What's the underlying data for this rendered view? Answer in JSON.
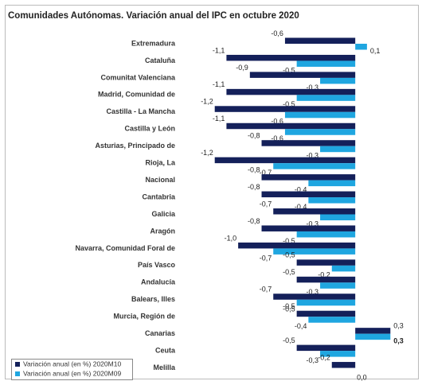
{
  "chart_data": {
    "type": "bar",
    "orientation": "horizontal",
    "title": "Comunidades Autónomas. Variación anual del IPC en octubre 2020",
    "categories": [
      "Extremadura",
      "Cataluña",
      "Comunitat Valenciana",
      "Madrid, Comunidad de",
      "Castilla - La Mancha",
      "Castilla y León",
      "Asturias, Principado de",
      "Rioja, La",
      "Nacional",
      "Cantabria",
      "Galicia",
      "Aragón",
      "Navarra, Comunidad Foral de",
      "País Vasco",
      "Andalucía",
      "Balears, Illes",
      "Murcia, Región de",
      "Canarias",
      "Ceuta",
      "Melilla"
    ],
    "series": [
      {
        "name": "Variación anual (en %) 2020M10",
        "color": "#14205a",
        "values": [
          -0.6,
          -1.1,
          -0.9,
          -1.1,
          -1.2,
          -1.1,
          -0.8,
          -1.2,
          -0.8,
          -0.8,
          -0.7,
          -0.8,
          -1.0,
          -0.5,
          -0.5,
          -0.7,
          -0.5,
          0.3,
          -0.5,
          -0.2
        ],
        "value_labels": [
          "-0,6",
          "-1,1",
          "-0,9",
          "-1,1",
          "-1,2",
          "-1,1",
          "-0,8",
          "-1,2",
          "-0,8",
          "-0,8",
          "-0,7",
          "-0,8",
          "-1,0",
          "-0,5",
          "-0,5",
          "-0,7",
          "-0,5",
          "0,3",
          "-0,5",
          "-0,2"
        ]
      },
      {
        "name": "Variación anual (en %) 2020M09",
        "color": "#1fa6e0",
        "values": [
          0.1,
          -0.5,
          -0.3,
          -0.5,
          -0.6,
          -0.6,
          -0.3,
          -0.7,
          -0.4,
          -0.4,
          -0.3,
          -0.5,
          -0.7,
          -0.2,
          -0.3,
          -0.5,
          -0.4,
          0.3,
          -0.3,
          0.0
        ],
        "value_labels": [
          "0,1",
          "-0,5",
          "-0,3",
          "-0,5",
          "-0,6",
          "-0,6",
          "-0,3",
          "-0,7",
          "-0,4",
          "-0,4",
          "-0,3",
          "-0,5",
          "-0,7",
          "-0,2",
          "-0,3",
          "-0,5",
          "-0,4",
          "0,3",
          "-0,3",
          "0,0"
        ]
      }
    ],
    "xlim": [
      -1.3,
      0.4
    ],
    "legend": "bottom-left"
  }
}
